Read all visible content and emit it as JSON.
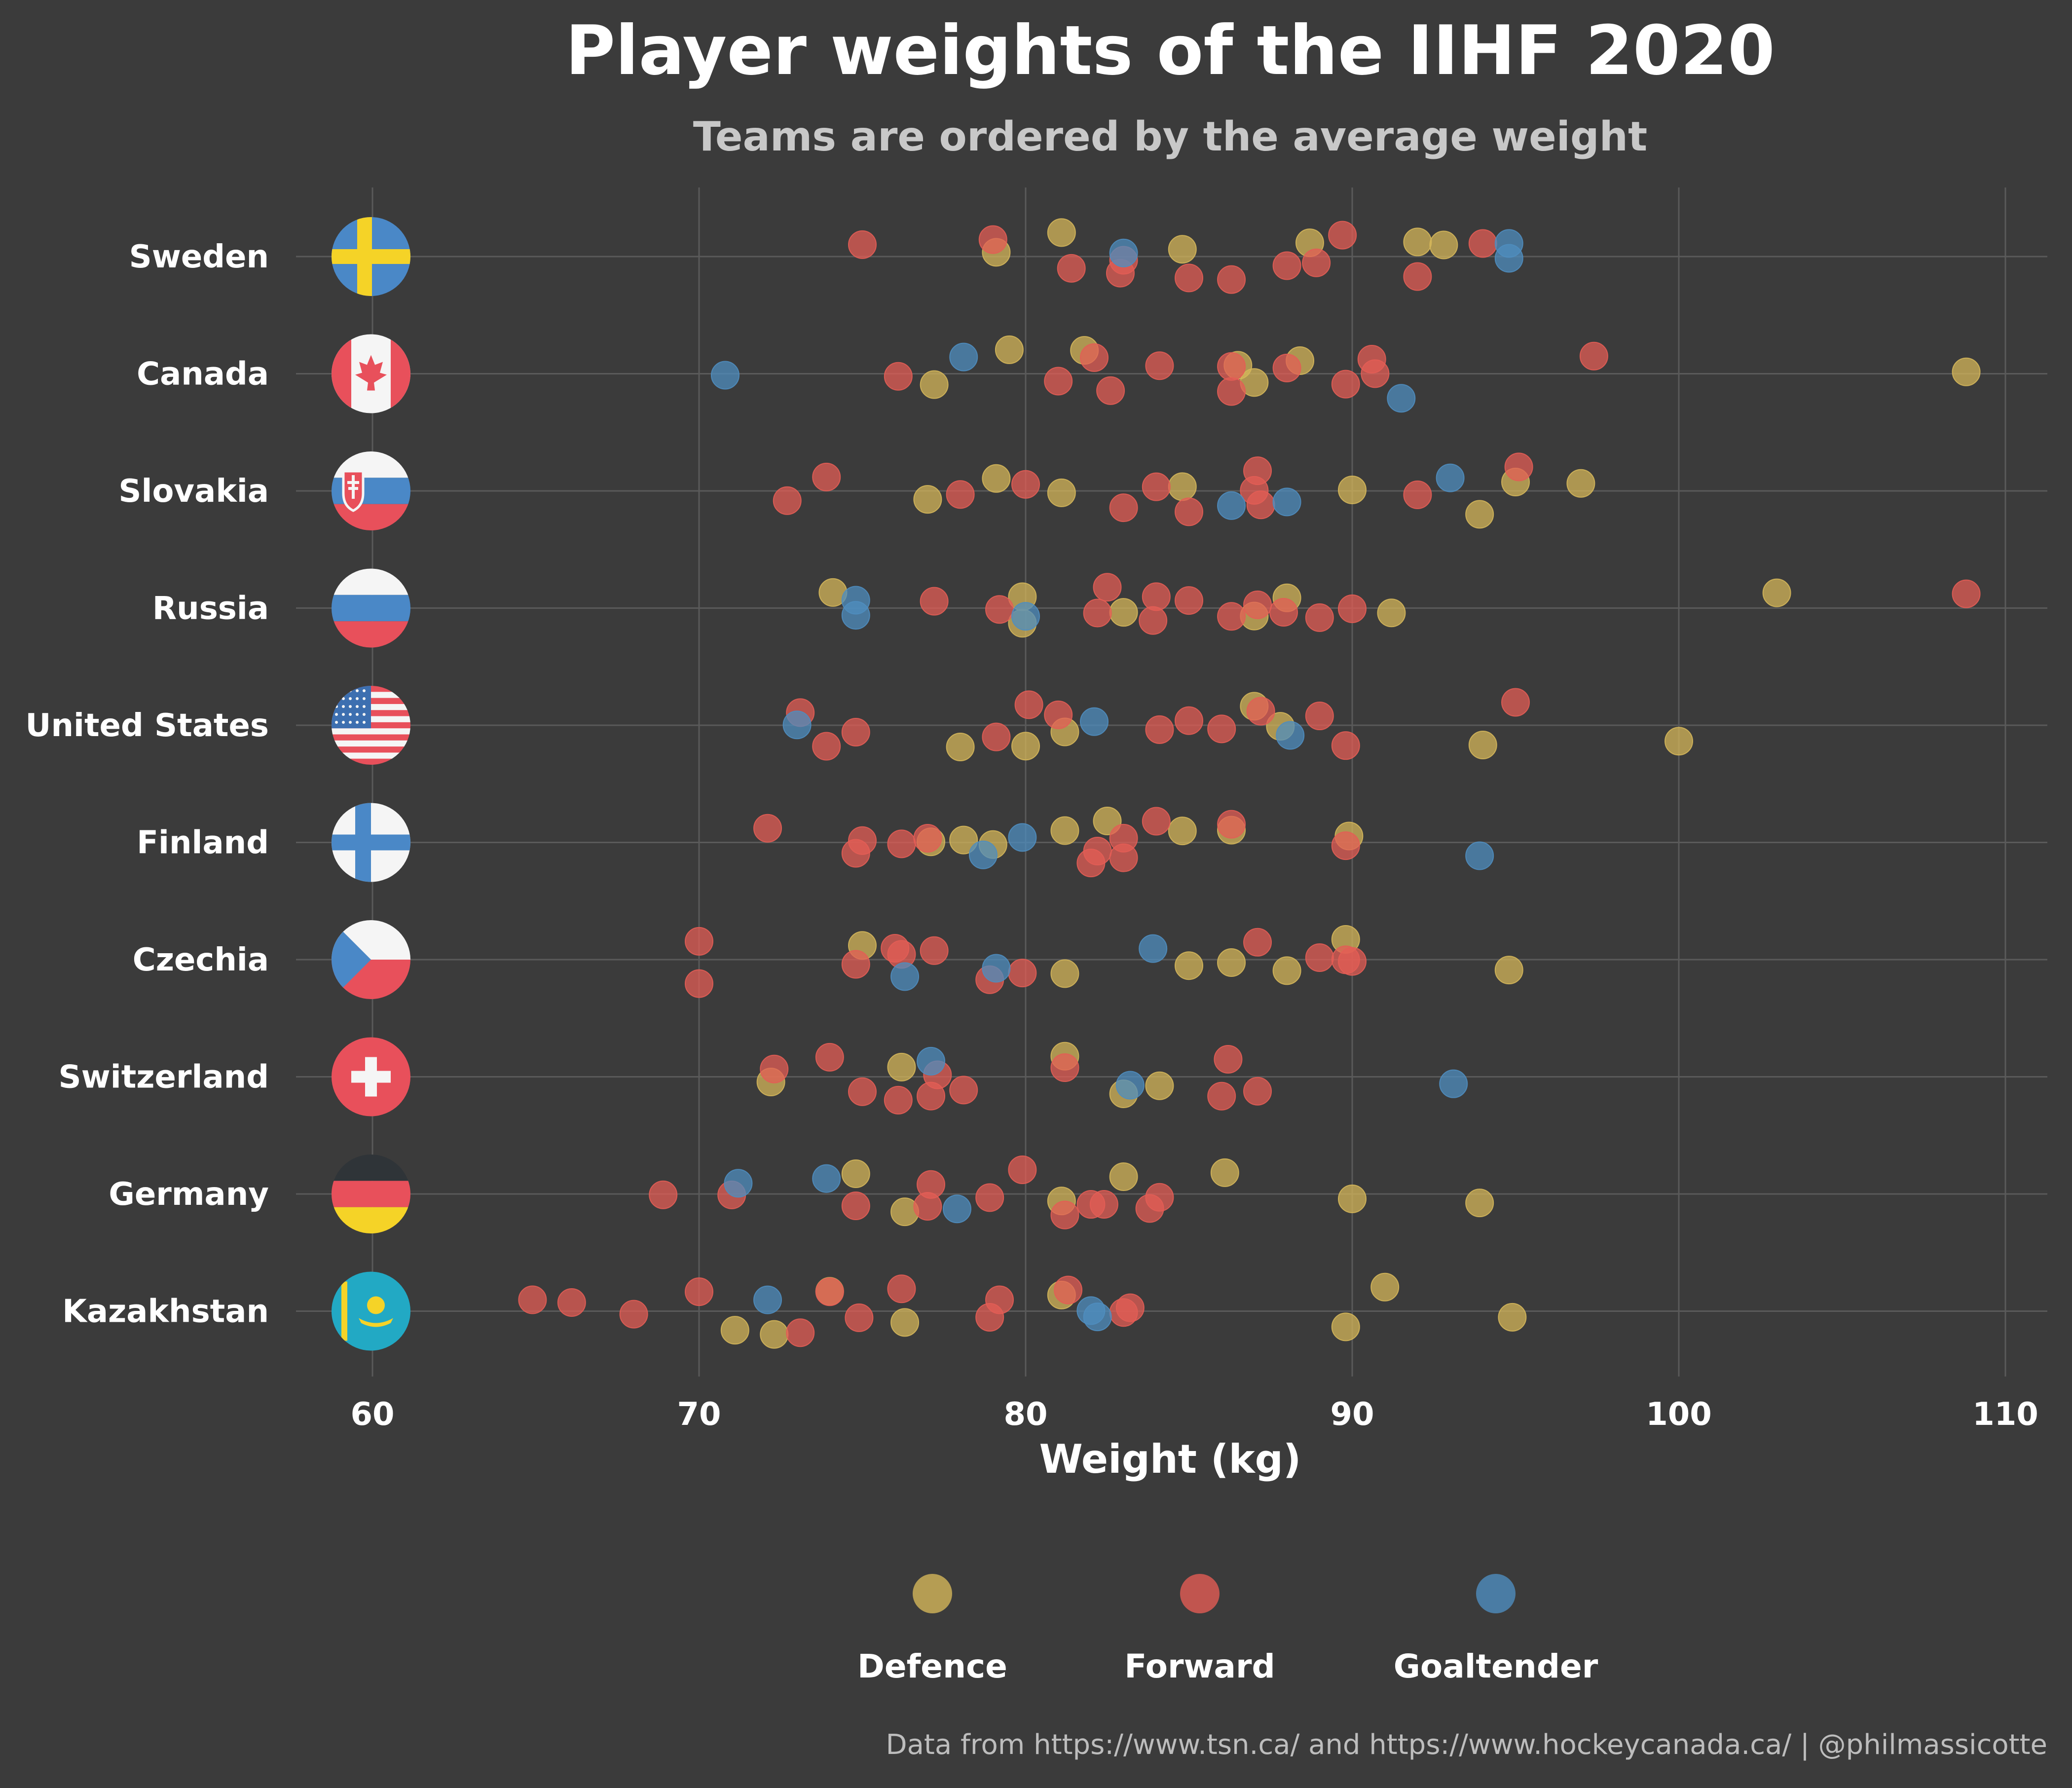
{
  "colors": {
    "background": "#3b3b3b",
    "grid": "#5a5a5a",
    "text": "#ffffff",
    "subtitle": "#c8c8c8",
    "caption": "#bdbdbd",
    "Defence": "#d4b65a",
    "Forward": "#e35d55",
    "Goaltender": "#4f8dbf"
  },
  "chart_data": {
    "type": "scatter",
    "title": "Player weights of the IIHF 2020",
    "subtitle": "Teams are ordered by the average weight",
    "xlabel": "Weight (kg)",
    "ylabel": "",
    "xlim": [
      57,
      112
    ],
    "x_ticks": [
      "60",
      "70",
      "80",
      "90",
      "100",
      "110"
    ],
    "grid": true,
    "legend_position": "bottom",
    "legend": [
      "Defence",
      "Forward",
      "Goaltender"
    ],
    "caption": "Data from https://www.tsn.ca/ and https://www.hockeycanada.ca/ | @philmassicotte",
    "categories": [
      "Sweden",
      "Canada",
      "Slovakia",
      "Russia",
      "United States",
      "Finland",
      "Czechia",
      "Switzerland",
      "Germany",
      "Kazakhstan"
    ],
    "flag_icons": [
      "sweden-flag-icon",
      "canada-flag-icon",
      "slovakia-flag-icon",
      "russia-flag-icon",
      "united-states-flag-icon",
      "finland-flag-icon",
      "czechia-flag-icon",
      "switzerland-flag-icon",
      "germany-flag-icon",
      "kazakhstan-flag-icon"
    ],
    "series": [
      {
        "name": "Defence",
        "points": [
          [
            "Sweden",
            79.1
          ],
          [
            "Sweden",
            81.1
          ],
          [
            "Sweden",
            84.8
          ],
          [
            "Sweden",
            88.7
          ],
          [
            "Sweden",
            92.8
          ],
          [
            "Sweden",
            92.0
          ],
          [
            "Canada",
            77.2
          ],
          [
            "Canada",
            79.5
          ],
          [
            "Canada",
            81.8
          ],
          [
            "Canada",
            86.5
          ],
          [
            "Canada",
            87.0
          ],
          [
            "Canada",
            88.4
          ],
          [
            "Canada",
            108.8
          ],
          [
            "Slovakia",
            77.0
          ],
          [
            "Slovakia",
            79.1
          ],
          [
            "Slovakia",
            81.1
          ],
          [
            "Slovakia",
            84.8
          ],
          [
            "Slovakia",
            90.0
          ],
          [
            "Slovakia",
            93.9
          ],
          [
            "Slovakia",
            95.0
          ],
          [
            "Slovakia",
            97.0
          ],
          [
            "Russia",
            74.1
          ],
          [
            "Russia",
            79.9
          ],
          [
            "Russia",
            79.9
          ],
          [
            "Russia",
            83.0
          ],
          [
            "Russia",
            88.0
          ],
          [
            "Russia",
            87.0
          ],
          [
            "Russia",
            91.2
          ],
          [
            "Russia",
            103.0
          ],
          [
            "United States",
            78.0
          ],
          [
            "United States",
            81.2
          ],
          [
            "United States",
            80.0
          ],
          [
            "United States",
            87.8
          ],
          [
            "United States",
            87.0
          ],
          [
            "United States",
            94.0
          ],
          [
            "United States",
            100.0
          ],
          [
            "Finland",
            78.1
          ],
          [
            "Finland",
            79.0
          ],
          [
            "Finland",
            81.2
          ],
          [
            "Finland",
            82.5
          ],
          [
            "Finland",
            84.8
          ],
          [
            "Finland",
            86.3
          ],
          [
            "Finland",
            89.9
          ],
          [
            "Finland",
            77.1
          ],
          [
            "Czechia",
            75.0
          ],
          [
            "Czechia",
            81.2
          ],
          [
            "Czechia",
            85.0
          ],
          [
            "Czechia",
            86.3
          ],
          [
            "Czechia",
            88.0
          ],
          [
            "Czechia",
            89.8
          ],
          [
            "Czechia",
            94.8
          ],
          [
            "Switzerland",
            72.2
          ],
          [
            "Switzerland",
            76.2
          ],
          [
            "Switzerland",
            81.2
          ],
          [
            "Switzerland",
            83.0
          ],
          [
            "Switzerland",
            84.1
          ],
          [
            "Germany",
            74.8
          ],
          [
            "Germany",
            76.3
          ],
          [
            "Germany",
            81.1
          ],
          [
            "Germany",
            83.0
          ],
          [
            "Germany",
            86.1
          ],
          [
            "Germany",
            90.0
          ],
          [
            "Germany",
            93.9
          ],
          [
            "Kazakhstan",
            71.1
          ],
          [
            "Kazakhstan",
            72.3
          ],
          [
            "Kazakhstan",
            74.0
          ],
          [
            "Kazakhstan",
            76.3
          ],
          [
            "Kazakhstan",
            81.1
          ],
          [
            "Kazakhstan",
            89.8
          ],
          [
            "Kazakhstan",
            91.0
          ],
          [
            "Kazakhstan",
            94.9
          ]
        ]
      },
      {
        "name": "Forward",
        "points": [
          [
            "Sweden",
            75.0
          ],
          [
            "Sweden",
            79.0
          ],
          [
            "Sweden",
            81.4
          ],
          [
            "Sweden",
            82.9
          ],
          [
            "Sweden",
            83.0
          ],
          [
            "Sweden",
            85.0
          ],
          [
            "Sweden",
            86.3
          ],
          [
            "Sweden",
            88.0
          ],
          [
            "Sweden",
            88.9
          ],
          [
            "Sweden",
            89.7
          ],
          [
            "Sweden",
            92.0
          ],
          [
            "Sweden",
            94.0
          ],
          [
            "Canada",
            76.1
          ],
          [
            "Canada",
            81.0
          ],
          [
            "Canada",
            82.1
          ],
          [
            "Canada",
            82.6
          ],
          [
            "Canada",
            84.1
          ],
          [
            "Canada",
            86.3
          ],
          [
            "Canada",
            86.3
          ],
          [
            "Canada",
            88.0
          ],
          [
            "Canada",
            89.8
          ],
          [
            "Canada",
            90.7
          ],
          [
            "Canada",
            90.6
          ],
          [
            "Canada",
            97.4
          ],
          [
            "Slovakia",
            72.7
          ],
          [
            "Slovakia",
            73.9
          ],
          [
            "Slovakia",
            78.0
          ],
          [
            "Slovakia",
            80.0
          ],
          [
            "Slovakia",
            83.0
          ],
          [
            "Slovakia",
            84.0
          ],
          [
            "Slovakia",
            85.0
          ],
          [
            "Slovakia",
            87.0
          ],
          [
            "Slovakia",
            87.1
          ],
          [
            "Slovakia",
            87.2
          ],
          [
            "Slovakia",
            92.0
          ],
          [
            "Slovakia",
            95.1
          ],
          [
            "Russia",
            77.2
          ],
          [
            "Russia",
            79.2
          ],
          [
            "Russia",
            82.2
          ],
          [
            "Russia",
            82.5
          ],
          [
            "Russia",
            83.9
          ],
          [
            "Russia",
            84.0
          ],
          [
            "Russia",
            85.0
          ],
          [
            "Russia",
            86.3
          ],
          [
            "Russia",
            87.1
          ],
          [
            "Russia",
            87.9
          ],
          [
            "Russia",
            89.0
          ],
          [
            "Russia",
            90.0
          ],
          [
            "Russia",
            108.8
          ],
          [
            "United States",
            73.1
          ],
          [
            "United States",
            73.9
          ],
          [
            "United States",
            74.8
          ],
          [
            "United States",
            79.1
          ],
          [
            "United States",
            80.1
          ],
          [
            "United States",
            81.0
          ],
          [
            "United States",
            84.1
          ],
          [
            "United States",
            85.0
          ],
          [
            "United States",
            86.0
          ],
          [
            "United States",
            87.2
          ],
          [
            "United States",
            89.0
          ],
          [
            "United States",
            89.8
          ],
          [
            "United States",
            95.0
          ],
          [
            "Finland",
            72.1
          ],
          [
            "Finland",
            74.8
          ],
          [
            "Finland",
            75.0
          ],
          [
            "Finland",
            76.2
          ],
          [
            "Finland",
            77.0
          ],
          [
            "Finland",
            82.0
          ],
          [
            "Finland",
            82.2
          ],
          [
            "Finland",
            83.0
          ],
          [
            "Finland",
            83.0
          ],
          [
            "Finland",
            84.0
          ],
          [
            "Finland",
            86.3
          ],
          [
            "Finland",
            89.8
          ],
          [
            "Czechia",
            70.0
          ],
          [
            "Czechia",
            70.0
          ],
          [
            "Czechia",
            74.8
          ],
          [
            "Czechia",
            76.0
          ],
          [
            "Czechia",
            76.2
          ],
          [
            "Czechia",
            77.2
          ],
          [
            "Czechia",
            78.9
          ],
          [
            "Czechia",
            79.9
          ],
          [
            "Czechia",
            87.1
          ],
          [
            "Czechia",
            89.0
          ],
          [
            "Czechia",
            90.0
          ],
          [
            "Czechia",
            89.8
          ],
          [
            "Switzerland",
            72.3
          ],
          [
            "Switzerland",
            74.0
          ],
          [
            "Switzerland",
            75.0
          ],
          [
            "Switzerland",
            76.1
          ],
          [
            "Switzerland",
            77.1
          ],
          [
            "Switzerland",
            77.3
          ],
          [
            "Switzerland",
            78.1
          ],
          [
            "Switzerland",
            81.2
          ],
          [
            "Switzerland",
            86.0
          ],
          [
            "Switzerland",
            86.2
          ],
          [
            "Switzerland",
            87.1
          ],
          [
            "Germany",
            68.9
          ],
          [
            "Germany",
            71.0
          ],
          [
            "Germany",
            74.8
          ],
          [
            "Germany",
            77.0
          ],
          [
            "Germany",
            77.1
          ],
          [
            "Germany",
            78.9
          ],
          [
            "Germany",
            79.9
          ],
          [
            "Germany",
            81.2
          ],
          [
            "Germany",
            82.0
          ],
          [
            "Germany",
            82.4
          ],
          [
            "Germany",
            83.8
          ],
          [
            "Germany",
            84.1
          ],
          [
            "Kazakhstan",
            64.9
          ],
          [
            "Kazakhstan",
            66.1
          ],
          [
            "Kazakhstan",
            68.0
          ],
          [
            "Kazakhstan",
            70.0
          ],
          [
            "Kazakhstan",
            73.1
          ],
          [
            "Kazakhstan",
            74.0
          ],
          [
            "Kazakhstan",
            74.9
          ],
          [
            "Kazakhstan",
            76.2
          ],
          [
            "Kazakhstan",
            78.9
          ],
          [
            "Kazakhstan",
            79.2
          ],
          [
            "Kazakhstan",
            81.3
          ],
          [
            "Kazakhstan",
            83.0
          ],
          [
            "Kazakhstan",
            83.2
          ]
        ]
      },
      {
        "name": "Goaltender",
        "points": [
          [
            "Sweden",
            83.0
          ],
          [
            "Sweden",
            94.8
          ],
          [
            "Sweden",
            94.8
          ],
          [
            "Canada",
            70.8
          ],
          [
            "Canada",
            78.1
          ],
          [
            "Canada",
            91.5
          ],
          [
            "Slovakia",
            86.3
          ],
          [
            "Slovakia",
            88.0
          ],
          [
            "Slovakia",
            93.0
          ],
          [
            "Russia",
            74.8
          ],
          [
            "Russia",
            74.8
          ],
          [
            "Russia",
            80.0
          ],
          [
            "United States",
            73.0
          ],
          [
            "United States",
            82.1
          ],
          [
            "United States",
            88.1
          ],
          [
            "Finland",
            78.7
          ],
          [
            "Finland",
            79.9
          ],
          [
            "Finland",
            93.9
          ],
          [
            "Czechia",
            76.3
          ],
          [
            "Czechia",
            79.1
          ],
          [
            "Czechia",
            83.9
          ],
          [
            "Switzerland",
            77.1
          ],
          [
            "Switzerland",
            83.2
          ],
          [
            "Switzerland",
            93.1
          ],
          [
            "Germany",
            73.9
          ],
          [
            "Germany",
            77.9
          ],
          [
            "Germany",
            71.2
          ],
          [
            "Kazakhstan",
            72.1
          ],
          [
            "Kazakhstan",
            82.0
          ],
          [
            "Kazakhstan",
            82.2
          ]
        ]
      }
    ]
  }
}
